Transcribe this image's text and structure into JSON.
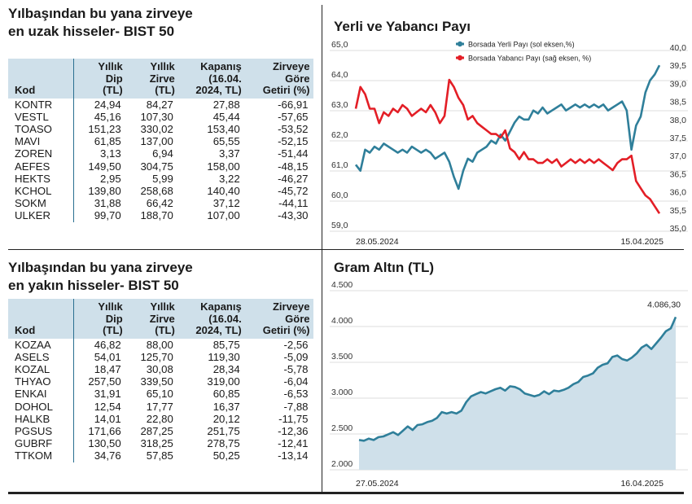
{
  "top_table": {
    "title_line1": "Yılbaşından bu yana zirveye",
    "title_line2": "en uzak hisseler- BIST 50",
    "headers": {
      "kod": "Kod",
      "dip": [
        "Yıllık",
        "Dip",
        "(TL)"
      ],
      "zirve": [
        "Yıllık",
        "Zirve",
        "(TL)"
      ],
      "kapanis": [
        "Kapanış",
        "(16.04.",
        "2024, TL)"
      ],
      "getiri": [
        "Zirveye",
        "Göre",
        "Getiri (%)"
      ]
    },
    "rows": [
      [
        "KONTR",
        "24,94",
        "84,27",
        "27,88",
        "-66,91"
      ],
      [
        "VESTL",
        "45,16",
        "107,30",
        "45,44",
        "-57,65"
      ],
      [
        "TOASO",
        "151,23",
        "330,02",
        "153,40",
        "-53,52"
      ],
      [
        "MAVI",
        "61,85",
        "137,00",
        "65,55",
        "-52,15"
      ],
      [
        "ZOREN",
        "3,13",
        "6,94",
        "3,37",
        "-51,44"
      ],
      [
        "AEFES",
        "149,50",
        "304,75",
        "158,00",
        "-48,15"
      ],
      [
        "HEKTS",
        "2,95",
        "5,99",
        "3,22",
        "-46,27"
      ],
      [
        "KCHOL",
        "139,80",
        "258,68",
        "140,40",
        "-45,72"
      ],
      [
        "SOKM",
        "31,88",
        "66,42",
        "37,12",
        "-44,11"
      ],
      [
        "ULKER",
        "99,70",
        "188,70",
        "107,00",
        "-43,30"
      ]
    ]
  },
  "bottom_table": {
    "title_line1": "Yılbaşından bu yana zirveye",
    "title_line2": "en yakın hisseler- BIST 50",
    "headers": {
      "kod": "Kod",
      "dip": [
        "Yıllık",
        "Dip",
        "(TL)"
      ],
      "zirve": [
        "Yıllık",
        "Zirve",
        "(TL)"
      ],
      "kapanis": [
        "Kapanış",
        "(16.04.",
        "2024, TL)"
      ],
      "getiri": [
        "Zirveye",
        "Göre",
        "Getiri (%)"
      ]
    },
    "rows": [
      [
        "KOZAA",
        "46,82",
        "88,00",
        "85,75",
        "-2,56"
      ],
      [
        "ASELS",
        "54,01",
        "125,70",
        "119,30",
        "-5,09"
      ],
      [
        "KOZAL",
        "18,47",
        "30,08",
        "28,34",
        "-5,78"
      ],
      [
        "THYAO",
        "257,50",
        "339,50",
        "319,00",
        "-6,04"
      ],
      [
        "ENKAI",
        "31,91",
        "65,10",
        "60,85",
        "-6,53"
      ],
      [
        "DOHOL",
        "12,54",
        "17,77",
        "16,37",
        "-7,88"
      ],
      [
        "HALKB",
        "14,01",
        "22,80",
        "20,12",
        "-11,75"
      ],
      [
        "PGSUS",
        "171,66",
        "287,25",
        "251,75",
        "-12,36"
      ],
      [
        "GUBRF",
        "130,50",
        "318,25",
        "278,75",
        "-12,41"
      ],
      [
        "TTKOM",
        "34,76",
        "57,85",
        "50,25",
        "-13,14"
      ]
    ]
  },
  "colors": {
    "header_bg": "#cfe0ea",
    "teal": "#2f7f9a",
    "red": "#e31e26",
    "area_fill": "#cfe0ea",
    "grid": "#bbbbbb"
  },
  "chart_data": [
    {
      "type": "line",
      "title": "Yerli ve Yabancı Payı",
      "legend": [
        "Borsada Yerli Payı (sol eksen,%)",
        "Borsada Yabancı Payı (sağ eksen, %)"
      ],
      "x_labels": [
        "28.05.2024",
        "15.04.2025"
      ],
      "y_left_ticks": [
        "65,0",
        "64,0",
        "63,0",
        "62,0",
        "61,0",
        "60,0",
        "59,0"
      ],
      "y_left_range": [
        59,
        65
      ],
      "y_right_ticks": [
        "40,0",
        "39,5",
        "39,0",
        "38,5",
        "38,0",
        "37,5",
        "37,0",
        "36,5",
        "36,0",
        "35,5",
        "35,0"
      ],
      "y_right_range": [
        35,
        40
      ],
      "series": [
        {
          "name": "Borsada Yerli Payı (sol eksen,%)",
          "axis": "left",
          "values": [
            61.1,
            60.9,
            61.6,
            61.5,
            61.7,
            61.6,
            61.8,
            61.7,
            61.6,
            61.5,
            61.6,
            61.5,
            61.7,
            61.6,
            61.5,
            61.6,
            61.5,
            61.3,
            61.4,
            61.5,
            61.2,
            60.7,
            60.3,
            60.9,
            61.3,
            61.2,
            61.5,
            61.6,
            61.7,
            61.9,
            61.8,
            62.1,
            61.9,
            62.2,
            62.5,
            62.7,
            62.6,
            62.6,
            62.9,
            62.8,
            63.0,
            62.8,
            62.9,
            63.0,
            63.1,
            62.9,
            63.0,
            63.1,
            63.0,
            63.1,
            63.0,
            63.1,
            63.0,
            63.1,
            62.9,
            63.0,
            63.1,
            63.2,
            62.9,
            61.6,
            62.4,
            62.7,
            63.5,
            63.9,
            64.1,
            64.4
          ]
        },
        {
          "name": "Borsada Yabancı Payı (sağ eksen, %)",
          "axis": "right",
          "values": [
            38.3,
            38.9,
            38.7,
            38.3,
            38.3,
            37.9,
            38.2,
            38.1,
            38.3,
            38.2,
            38.4,
            38.3,
            38.1,
            38.2,
            38.3,
            38.2,
            38.4,
            38.2,
            37.9,
            38.1,
            39.1,
            38.9,
            38.6,
            38.4,
            38.0,
            38.1,
            37.9,
            37.8,
            37.7,
            37.6,
            37.6,
            37.5,
            37.7,
            37.2,
            37.1,
            36.9,
            37.1,
            36.9,
            36.9,
            36.8,
            36.8,
            36.9,
            36.8,
            36.9,
            36.7,
            36.8,
            36.9,
            36.8,
            36.9,
            36.8,
            36.9,
            36.8,
            36.9,
            36.8,
            36.7,
            36.6,
            36.8,
            36.9,
            36.9,
            37.0,
            36.3,
            36.1,
            35.9,
            35.8,
            35.6,
            35.4
          ]
        }
      ]
    },
    {
      "type": "area",
      "title": "Gram Altın (TL)",
      "x_labels": [
        "27.05.2024",
        "16.04.2025"
      ],
      "y_ticks": [
        "4.500",
        "4.000",
        "3.500",
        "3.000",
        "2.500",
        "2.000"
      ],
      "y_range": [
        2000,
        4500
      ],
      "last_value_label": "4.086,30",
      "series": [
        {
          "name": "Gram Altın",
          "values": [
            2370,
            2360,
            2390,
            2370,
            2410,
            2420,
            2450,
            2480,
            2440,
            2500,
            2560,
            2510,
            2580,
            2590,
            2620,
            2640,
            2680,
            2760,
            2740,
            2760,
            2740,
            2780,
            2900,
            2980,
            3010,
            3040,
            3020,
            3050,
            3080,
            3100,
            3060,
            3120,
            3110,
            3080,
            3020,
            3000,
            2980,
            3000,
            3050,
            3010,
            3060,
            3050,
            3070,
            3100,
            3150,
            3180,
            3250,
            3270,
            3300,
            3380,
            3420,
            3440,
            3530,
            3550,
            3500,
            3480,
            3520,
            3580,
            3660,
            3700,
            3640,
            3720,
            3800,
            3890,
            3930,
            4086
          ]
        }
      ]
    }
  ]
}
